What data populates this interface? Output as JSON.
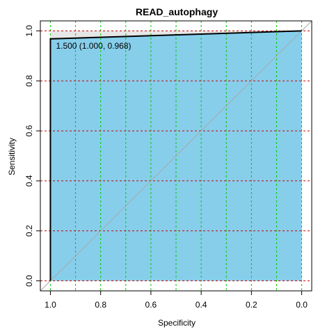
{
  "chart_data": {
    "type": "roc",
    "title": "READ_autophagy",
    "x_label": "Specificity",
    "y_label": "Sensitivity",
    "x": [
      1,
      1,
      0.75,
      0.5,
      0.25,
      0
    ],
    "values": [
      0,
      0.968,
      0.976,
      0.984,
      0.992,
      1
    ],
    "color": "#000000",
    "auc_fill": "#87ceeb",
    "max_auc_fill": "#e6e6e6",
    "annotation": "1.500 (1.000, 0.968)",
    "xlim": [
      1.04,
      -0.04
    ],
    "ylim": [
      -0.04,
      1.04
    ],
    "xticks": [
      {
        "value": 1,
        "label": "1.0"
      },
      0.8,
      0.6,
      0.4,
      0.2,
      {
        "value": 0,
        "label": "0.0"
      }
    ],
    "yticks": [
      {
        "value": 0,
        "label": "0.0"
      },
      0.2,
      0.4,
      0.6,
      0.8,
      {
        "value": 1,
        "label": "1.0"
      }
    ],
    "xgrid": [
      1,
      0.9,
      0.8,
      0.7,
      0.6,
      0.5,
      0.4,
      0.3,
      0.2,
      0.1,
      0
    ],
    "xgrid_color": "#00cc00",
    "ygrid_color": "#cc0000"
  }
}
